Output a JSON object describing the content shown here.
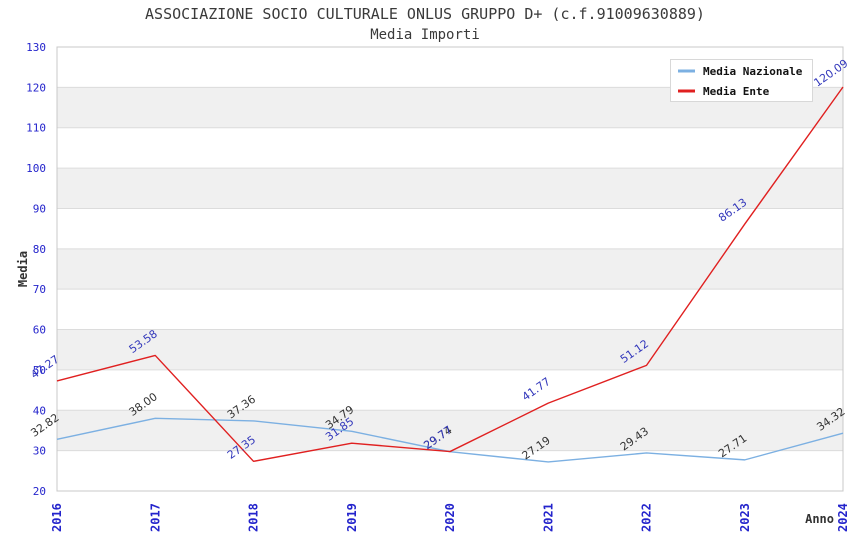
{
  "header": {
    "title": "ASSOCIAZIONE SOCIO CULTURALE ONLUS GRUPPO D+ (c.f.91009630889)",
    "subtitle": "Media Importi"
  },
  "chart_data": {
    "type": "line",
    "x": [
      "2016",
      "2017",
      "2018",
      "2019",
      "2020",
      "2021",
      "2022",
      "2023",
      "2024"
    ],
    "xlabel": "Anno",
    "ylabel": "Media",
    "ylim": [
      20,
      130
    ],
    "ytick_step": 10,
    "yticks": [
      20,
      30,
      40,
      50,
      60,
      70,
      80,
      90,
      100,
      110,
      120,
      130
    ],
    "grid": "horizontal-bands",
    "legend_position": "top-right",
    "series": [
      {
        "name": "Media Nazionale",
        "color": "#7cb0e2",
        "label_color": "#333333",
        "values": [
          32.82,
          38.0,
          37.36,
          34.79,
          29.74,
          27.19,
          29.43,
          27.71,
          34.32
        ]
      },
      {
        "name": "Media Ente",
        "color": "#e02020",
        "label_color": "#3338bb",
        "values": [
          47.27,
          53.58,
          27.35,
          31.85,
          29.77,
          41.77,
          51.12,
          86.13,
          120.09
        ]
      }
    ]
  },
  "colors": {
    "band": "#f0f0f0",
    "grid_line": "#dcdcdc",
    "plot_border": "#c8c8c8",
    "tick_blue": "#2424cc",
    "title_text": "#3a3a3a",
    "legend_border": "#d8d8d8",
    "legend_bg": "#ffffff"
  }
}
